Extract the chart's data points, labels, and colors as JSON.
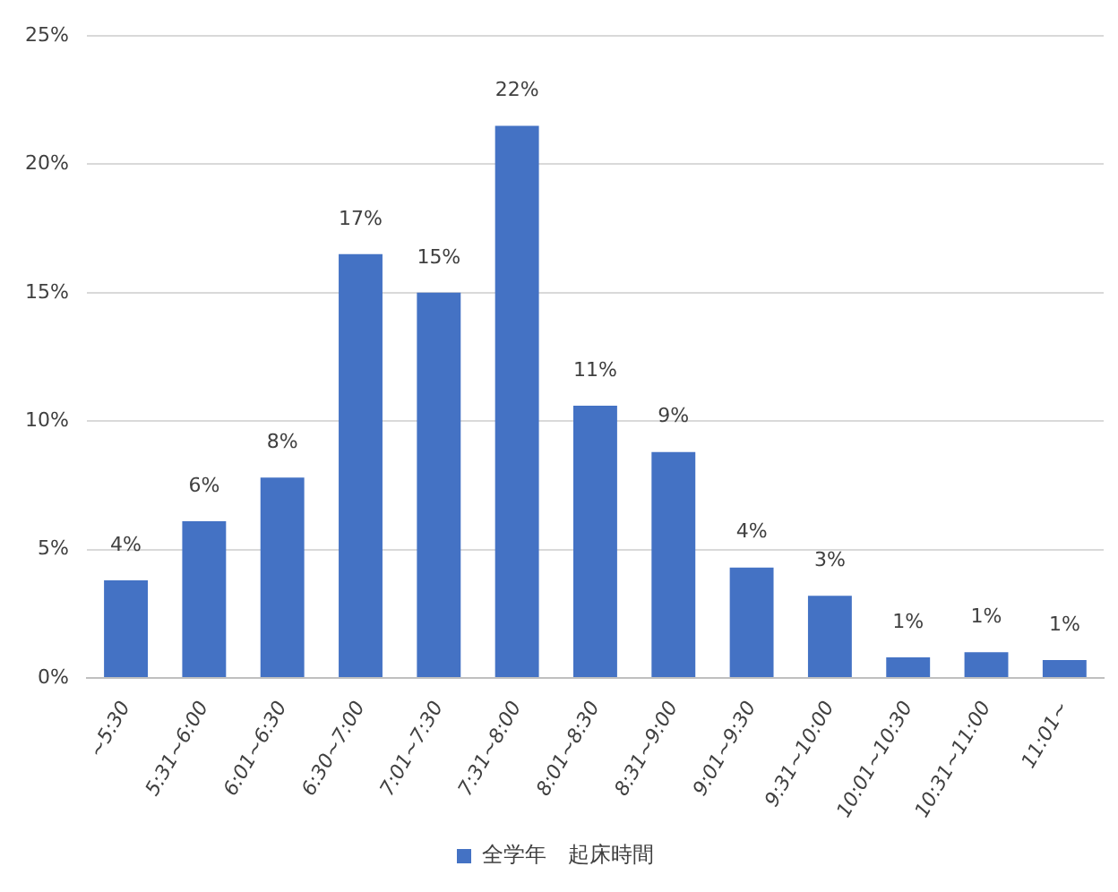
{
  "chart_data": {
    "type": "bar",
    "categories": [
      "~5:30",
      "5:31~6:00",
      "6:01~6:30",
      "6:30~7:00",
      "7:01~7:30",
      "7:31~8:00",
      "8:01~8:30",
      "8:31~9:00",
      "9:01~9:30",
      "9:31~10:00",
      "10:01~10:30",
      "10:31~11:00",
      "11:01~"
    ],
    "series": [
      {
        "name": "全学年　起床時間",
        "color": "#4472c4",
        "values": [
          3.8,
          6.1,
          7.8,
          16.5,
          15.0,
          21.5,
          10.6,
          8.8,
          4.3,
          3.2,
          0.8,
          1.0,
          0.7
        ],
        "value_labels": [
          "4%",
          "6%",
          "8%",
          "17%",
          "15%",
          "22%",
          "11%",
          "9%",
          "4%",
          "3%",
          "1%",
          "1%",
          "1%"
        ]
      }
    ],
    "ylim": [
      0,
      25
    ],
    "yticks": [
      {
        "value": 0,
        "label": "0%"
      },
      {
        "value": 5,
        "label": "5%"
      },
      {
        "value": 10,
        "label": "10%"
      },
      {
        "value": 15,
        "label": "15%"
      },
      {
        "value": 20,
        "label": "20%"
      },
      {
        "value": 25,
        "label": "25%"
      }
    ],
    "grid": "y",
    "legend": "bottom"
  }
}
